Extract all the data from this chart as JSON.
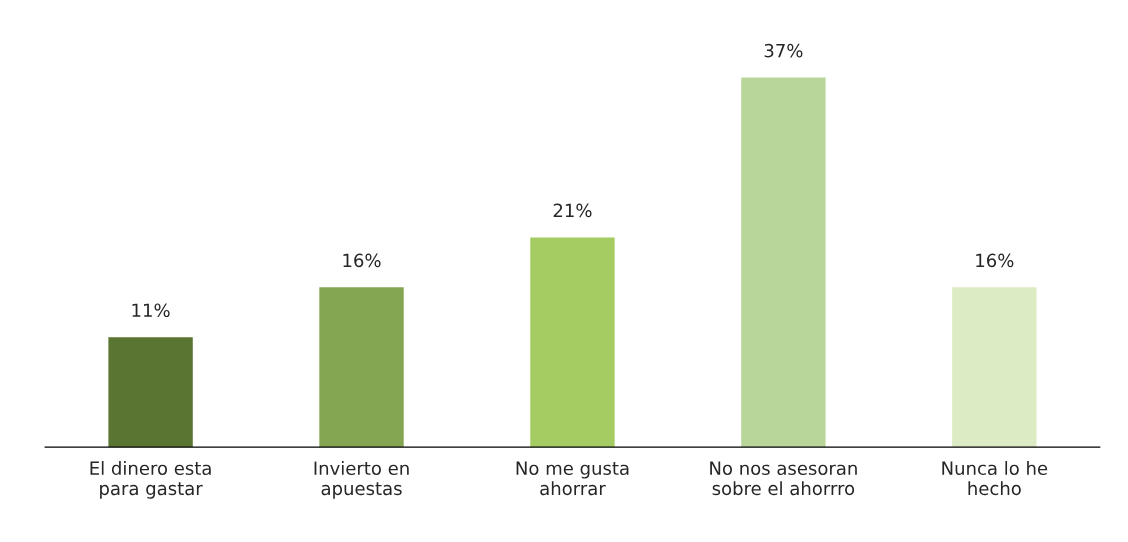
{
  "chart_data": {
    "type": "bar",
    "categories": [
      "El dinero esta\npara gastar",
      "Invierto en\napuestas",
      "No me gusta\nahorrar",
      "No nos asesoran\nsobre el ahorrro",
      "Nunca lo he\nhecho"
    ],
    "values": [
      11,
      16,
      21,
      37,
      16
    ],
    "colors": [
      "#5a7432",
      "#84a552",
      "#a4cc62",
      "#b9d69a",
      "#dcebc4"
    ],
    "value_labels": [
      "11%",
      "16%",
      "21%",
      "37%",
      "16%"
    ],
    "tick_labels": "x",
    "grid": false,
    "legend": false
  }
}
